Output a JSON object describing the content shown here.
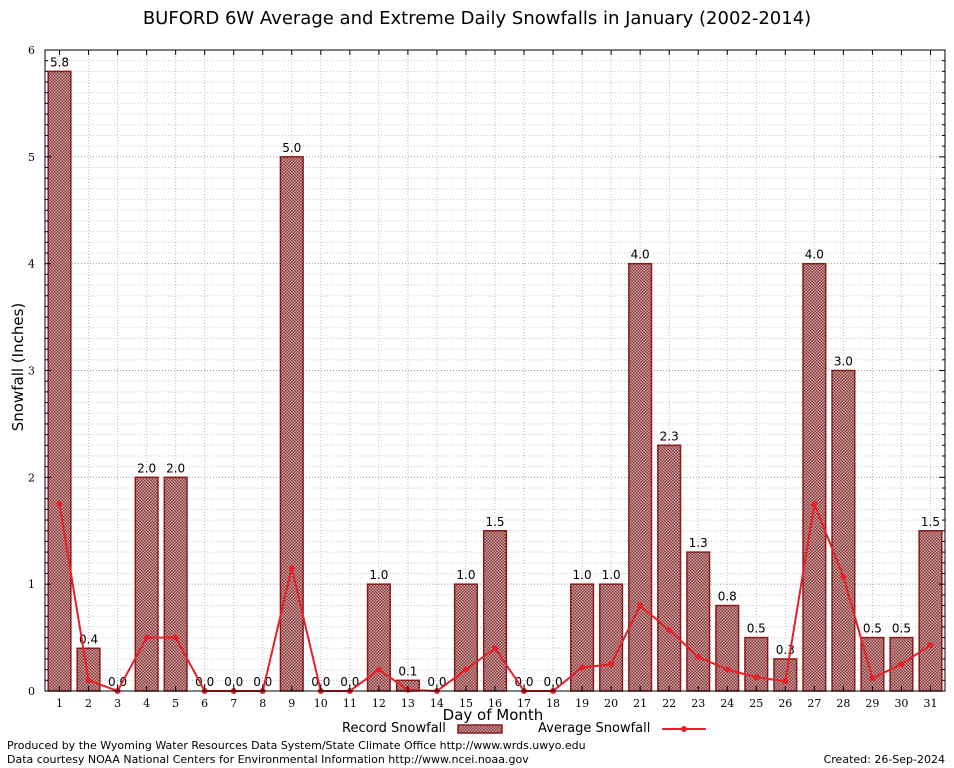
{
  "title": "BUFORD 6W Average and Extreme Daily Snowfalls in January (2002-2014)",
  "footer": {
    "line1": "Produced by the Wyoming Water Resources Data System/State Climate Office http://www.wrds.uwyo.edu",
    "line2": "Data courtesy NOAA National Centers for Environmental Information http://www.ncei.noaa.gov",
    "created": "Created:  26-Sep-2024"
  },
  "colors": {
    "bar_fill": "#b58a8a",
    "bar_stroke": "#8b1a1a",
    "line": "#e8202a",
    "grid": "#aaaaaa"
  },
  "chart_data": {
    "type": "bar",
    "xlabel": "Day of Month",
    "ylabel": "Snowfall (Inches)",
    "ylim": [
      0,
      6
    ],
    "yticks": [
      "0",
      "1",
      "2",
      "3",
      "4",
      "5",
      "6"
    ],
    "grid": true,
    "legend_placement": "bottom",
    "categories": [
      "1",
      "2",
      "3",
      "4",
      "5",
      "6",
      "7",
      "8",
      "9",
      "10",
      "11",
      "12",
      "13",
      "14",
      "15",
      "16",
      "17",
      "18",
      "19",
      "20",
      "21",
      "22",
      "23",
      "24",
      "25",
      "26",
      "27",
      "28",
      "29",
      "30",
      "31"
    ],
    "series": [
      {
        "name": "Record Snowfall",
        "type": "bar",
        "values": [
          5.8,
          0.4,
          0.0,
          2.0,
          2.0,
          0.0,
          0.0,
          0.0,
          5.0,
          0.0,
          0.0,
          1.0,
          0.1,
          0.0,
          1.0,
          1.5,
          0.0,
          0.0,
          1.0,
          1.0,
          4.0,
          2.3,
          1.3,
          0.8,
          0.5,
          0.3,
          4.0,
          3.0,
          0.5,
          0.5,
          1.5
        ],
        "labels": [
          "5.8",
          "0.4",
          "0.0",
          "2.0",
          "2.0",
          "0.0",
          "0.0",
          "0.0",
          "5.0",
          "0.0",
          "0.0",
          "1.0",
          "0.1",
          "0.0",
          "1.0",
          "1.5",
          "0.0",
          "0.0",
          "1.0",
          "1.0",
          "4.0",
          "2.3",
          "1.3",
          "0.8",
          "0.5",
          "0.3",
          "4.0",
          "3.0",
          "0.5",
          "0.5",
          "1.5"
        ]
      },
      {
        "name": "Average Snowfall",
        "type": "line",
        "values": [
          1.75,
          0.1,
          0.0,
          0.5,
          0.5,
          0.0,
          0.0,
          0.0,
          1.15,
          0.0,
          0.0,
          0.2,
          0.01,
          0.0,
          0.2,
          0.4,
          0.0,
          0.0,
          0.22,
          0.25,
          0.8,
          0.57,
          0.32,
          0.2,
          0.13,
          0.09,
          1.75,
          1.07,
          0.12,
          0.25,
          0.43
        ]
      }
    ]
  }
}
